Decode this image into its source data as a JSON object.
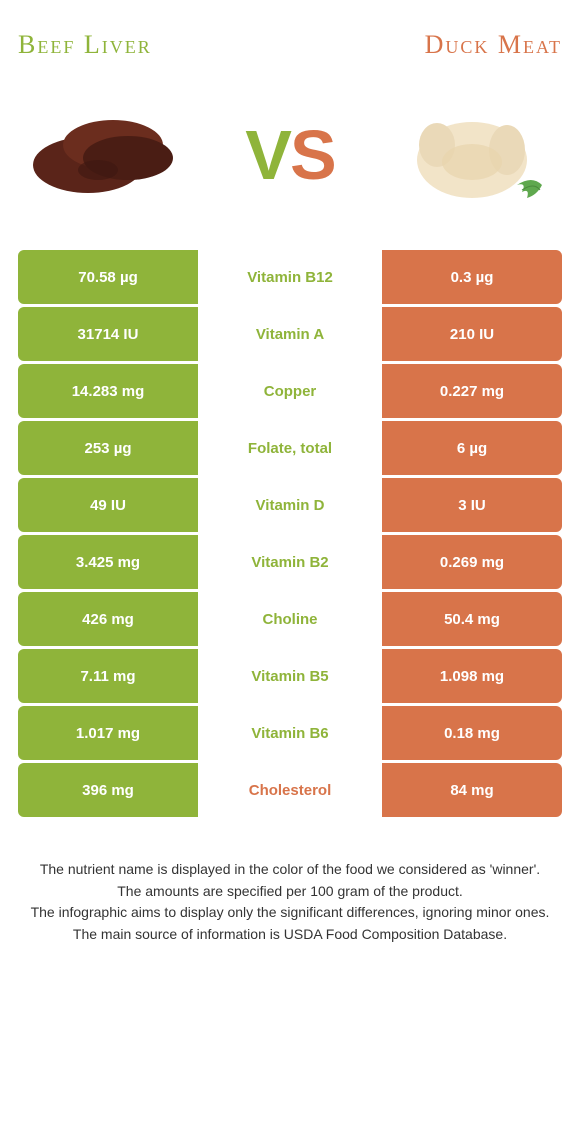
{
  "header": {
    "left_title": "Beef Liver",
    "right_title": "Duck Meat",
    "left_color": "#8fb43a",
    "right_color": "#d8744a"
  },
  "vs": {
    "v_color": "#8fb43a",
    "s_color": "#d8744a",
    "v_text": "V",
    "s_text": "S"
  },
  "colors": {
    "left_bg": "#8fb43a",
    "right_bg": "#d8744a",
    "nutrient_left": "#8fb43a",
    "nutrient_right": "#d8744a"
  },
  "rows": [
    {
      "left": "70.58 µg",
      "nutrient": "Vitamin B12",
      "right": "0.3 µg",
      "winner": "left"
    },
    {
      "left": "31714 IU",
      "nutrient": "Vitamin A",
      "right": "210 IU",
      "winner": "left"
    },
    {
      "left": "14.283 mg",
      "nutrient": "Copper",
      "right": "0.227 mg",
      "winner": "left"
    },
    {
      "left": "253 µg",
      "nutrient": "Folate, total",
      "right": "6 µg",
      "winner": "left"
    },
    {
      "left": "49 IU",
      "nutrient": "Vitamin D",
      "right": "3 IU",
      "winner": "left"
    },
    {
      "left": "3.425 mg",
      "nutrient": "Vitamin B2",
      "right": "0.269 mg",
      "winner": "left"
    },
    {
      "left": "426 mg",
      "nutrient": "Choline",
      "right": "50.4 mg",
      "winner": "left"
    },
    {
      "left": "7.11 mg",
      "nutrient": "Vitamin B5",
      "right": "1.098 mg",
      "winner": "left"
    },
    {
      "left": "1.017 mg",
      "nutrient": "Vitamin B6",
      "right": "0.18 mg",
      "winner": "left"
    },
    {
      "left": "396 mg",
      "nutrient": "Cholesterol",
      "right": "84 mg",
      "winner": "right"
    }
  ],
  "footer": {
    "line1": "The nutrient name is displayed in the color of the food we considered as 'winner'.",
    "line2": "The amounts are specified per 100 gram of the product.",
    "line3": "The infographic aims to display only the significant differences, ignoring minor ones.",
    "line4": "The main source of information is USDA Food Composition Database."
  }
}
